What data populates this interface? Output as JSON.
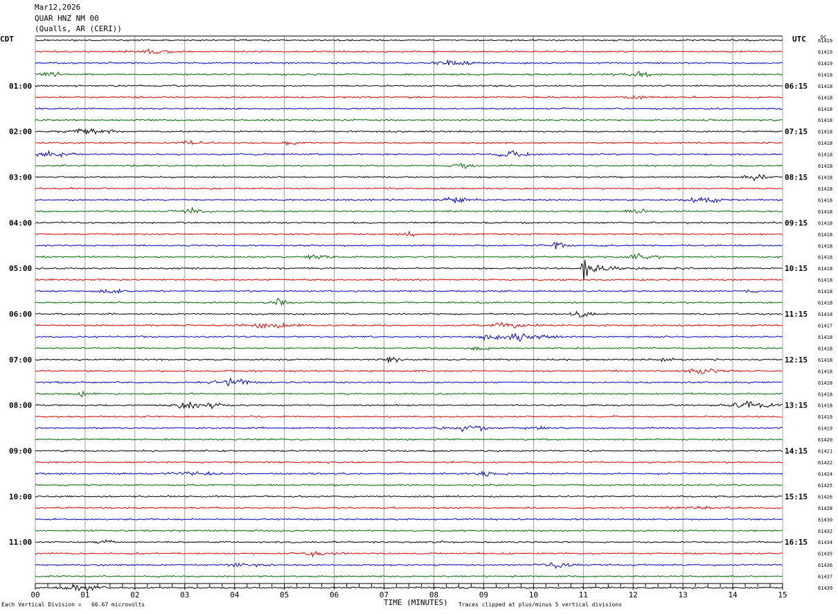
{
  "header": {
    "date": "Mar12,2026",
    "station": "QUAR HNZ NM 00",
    "location": "(Qualls, AR (CERI))"
  },
  "left_tz": "CDT",
  "right_tz": "UTC",
  "dc_label": "DC",
  "footer": {
    "scale": "Each Vertical Division =   66.67 microvolts",
    "xlabel": "TIME (MINUTES)",
    "clip": "Traces clipped at plus/minus 5 vertical divisions"
  },
  "colors": {
    "trace": [
      "#000000",
      "#e00000",
      "#0000cc",
      "#006600"
    ],
    "grid": "#888888"
  },
  "chart_data": {
    "type": "line",
    "xlabel": "TIME (MINUTES)",
    "xlim": [
      0,
      15
    ],
    "x_ticks": [
      "00",
      "01",
      "02",
      "03",
      "04",
      "05",
      "06",
      "07",
      "08",
      "09",
      "10",
      "11",
      "12",
      "13",
      "14",
      "15"
    ],
    "left_hour_labels": [
      "01:00",
      "02:00",
      "03:00",
      "04:00",
      "05:00",
      "06:00",
      "07:00",
      "08:00",
      "09:00",
      "10:00",
      "11:00"
    ],
    "right_hour_labels": [
      "06:15",
      "07:15",
      "08:15",
      "09:15",
      "10:15",
      "11:15",
      "12:15",
      "13:15",
      "14:15",
      "15:15",
      "16:15"
    ],
    "hour_label_rows": [
      4,
      8,
      12,
      16,
      20,
      24,
      28,
      32,
      36,
      40,
      44
    ],
    "dc_offsets": [
      61419,
      61419,
      61419,
      61418,
      61418,
      61418,
      61418,
      61418,
      61418,
      61418,
      61418,
      61418,
      61418,
      61418,
      61418,
      61418,
      61418,
      61418,
      61418,
      61418,
      61418,
      61418,
      61418,
      61418,
      61418,
      61417,
      61418,
      61418,
      61418,
      61418,
      61418,
      61418,
      61418,
      61419,
      61419,
      61420,
      61421,
      61422,
      61424,
      61425,
      61426,
      61428,
      61430,
      61432,
      61434,
      61435,
      61436,
      61437,
      61439
    ],
    "trace_count": 49,
    "event": {
      "row": 20,
      "minute": 11.0,
      "label": ""
    }
  }
}
